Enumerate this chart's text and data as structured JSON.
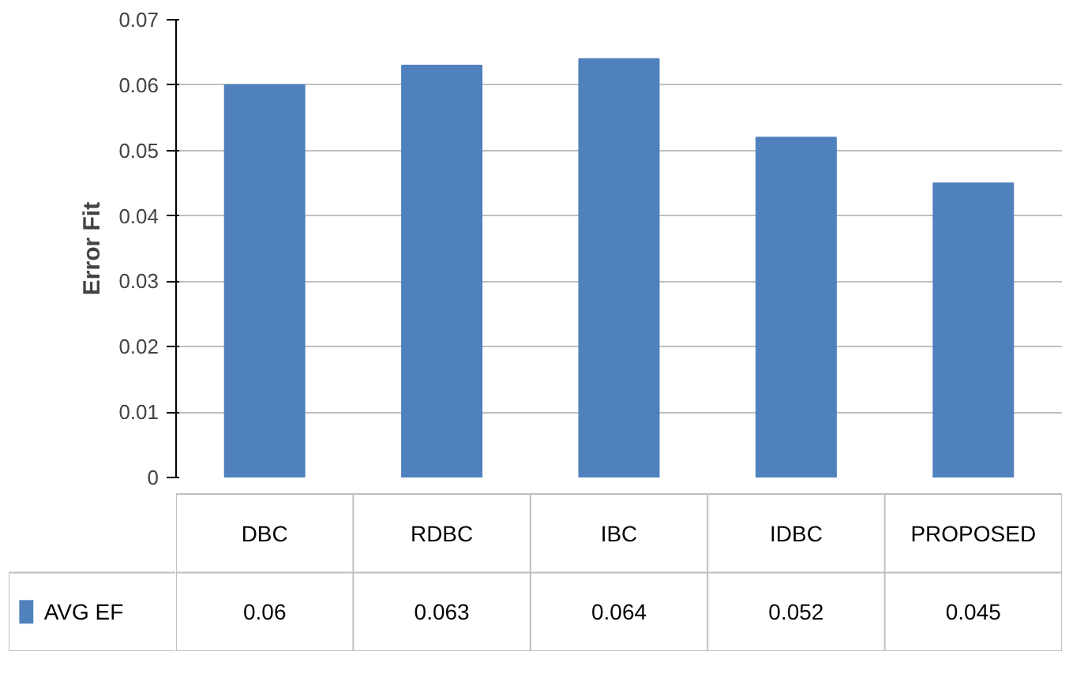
{
  "chart_data": {
    "type": "bar",
    "ylabel": "Error Fit",
    "categories": [
      "DBC",
      "RDBC",
      "IBC",
      "IDBC",
      "PROPOSED"
    ],
    "series": [
      {
        "name": "AVG EF",
        "color": "#4f81bd",
        "values": [
          0.06,
          0.063,
          0.064,
          0.052,
          0.045
        ]
      }
    ],
    "ylim": [
      0,
      0.07
    ],
    "yticks": [
      0,
      0.01,
      0.02,
      0.03,
      0.04,
      0.05,
      0.06,
      0.07
    ],
    "grid": "y",
    "legend": "bottom",
    "data_labels": true
  }
}
